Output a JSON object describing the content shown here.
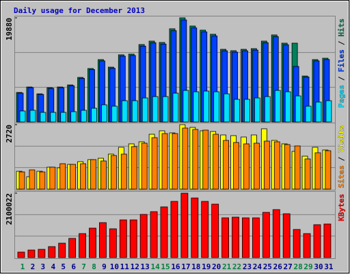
{
  "title": "Daily usage for December 2013",
  "legend_separator": "/",
  "chart_data": [
    {
      "type": "bar",
      "ylim": [
        0,
        19880
      ],
      "yticks": [
        19880
      ],
      "series": [
        {
          "name": "Hits",
          "color": "#00805c",
          "values": [
            5624,
            6671,
            5363,
            6540,
            6671,
            7063,
            8502,
            10202,
            11903,
            10464,
            12818,
            12949,
            14780,
            15434,
            15173,
            17789,
            19880,
            18312,
            17527,
            16742,
            13865,
            13603,
            13865,
            13996,
            15434,
            16612,
            15042,
            15042,
            8764,
            11903,
            12164
          ]
        },
        {
          "name": "Files",
          "color": "#0040ff",
          "values": [
            5510,
            6540,
            5250,
            6410,
            6540,
            6920,
            8330,
            10000,
            11660,
            10250,
            12560,
            12690,
            14480,
            15120,
            14870,
            17430,
            19480,
            17950,
            17180,
            16410,
            13590,
            13330,
            13590,
            13720,
            15120,
            16280,
            14740,
            10600,
            8590,
            11660,
            11920
          ]
        },
        {
          "name": "Pages",
          "color": "#00e0ff",
          "values": [
            2093,
            2224,
            1831,
            1831,
            1831,
            1962,
            2224,
            2616,
            3270,
            3008,
            4055,
            4055,
            4578,
            4840,
            4840,
            5494,
            6017,
            5755,
            5886,
            5755,
            5363,
            4316,
            4316,
            4578,
            4840,
            6017,
            5755,
            4970,
            3008,
            3793,
            4055
          ]
        }
      ]
    },
    {
      "type": "bar",
      "ylim": [
        0,
        2720
      ],
      "yticks": [
        2720
      ],
      "series": [
        {
          "name": "Visits",
          "color": "#ffff00",
          "values": [
            752,
            521,
            752,
            926,
            897,
            1042,
            1158,
            1244,
            1302,
            1476,
            1765,
            1910,
            1997,
            2315,
            2460,
            2373,
            2720,
            2605,
            2460,
            2431,
            2286,
            2257,
            2199,
            2286,
            2547,
            2055,
            1910,
            1592,
            1389,
            1765,
            1650
          ]
        },
        {
          "name": "Sites",
          "color": "#ff8000",
          "values": [
            724,
            810,
            724,
            926,
            1071,
            1042,
            1071,
            1244,
            1187,
            1418,
            1476,
            1794,
            1939,
            2171,
            2344,
            2344,
            2576,
            2518,
            2489,
            2315,
            2055,
            1968,
            1910,
            1939,
            2026,
            1997,
            1881,
            1823,
            1273,
            1534,
            1621
          ]
        }
      ]
    },
    {
      "type": "bar",
      "ylim": [
        0,
        2100022
      ],
      "yticks": [
        2100022
      ],
      "categories": [
        "1",
        "2",
        "3",
        "4",
        "5",
        "6",
        "7",
        "8",
        "9",
        "10",
        "11",
        "12",
        "13",
        "14",
        "15",
        "16",
        "17",
        "18",
        "19",
        "20",
        "21",
        "22",
        "23",
        "24",
        "25",
        "26",
        "27",
        "28",
        "29",
        "30",
        "31"
      ],
      "label_colors": [
        "#008040",
        "#00008b",
        "#00008b",
        "#00008b",
        "#00008b",
        "#00008b",
        "#008040",
        "#008040",
        "#00008b",
        "#00008b",
        "#00008b",
        "#00008b",
        "#00008b",
        "#008040",
        "#008040",
        "#00008b",
        "#00008b",
        "#00008b",
        "#00008b",
        "#00008b",
        "#008040",
        "#008040",
        "#00008b",
        "#00008b",
        "#00008b",
        "#00008b",
        "#00008b",
        "#008040",
        "#008040",
        "#00008b",
        "#00008b"
      ],
      "series": [
        {
          "name": "KBytes",
          "color": "#ff0000",
          "values": [
            178728,
            245751,
            268092,
            357456,
            469161,
            625548,
            781935,
            960663,
            1139391,
            938322,
            1228755,
            1228755,
            1407483,
            1496847,
            1653234,
            1831962,
            2100022,
            1943667,
            1831962,
            1742598,
            1295778,
            1318119,
            1295778,
            1295778,
            1474506,
            1563870,
            1429824,
            915981,
            781935,
            1072368,
            1094709
          ]
        }
      ]
    }
  ]
}
